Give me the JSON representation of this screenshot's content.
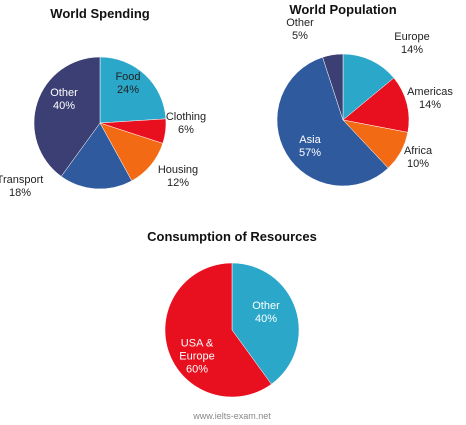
{
  "chart_data": [
    {
      "type": "pie",
      "title": "World Spending",
      "categories": [
        "Food",
        "Clothing",
        "Housing",
        "Transport",
        "Other"
      ],
      "values": [
        24,
        6,
        12,
        18,
        40
      ],
      "value_labels": [
        "24%",
        "6%",
        "12%",
        "18%",
        "40%"
      ],
      "colors": [
        "#2aa7c9",
        "#e8101e",
        "#f36a15",
        "#2f5a9e",
        "#3b3f73"
      ]
    },
    {
      "type": "pie",
      "title": "World Population",
      "categories": [
        "Europe",
        "Americas",
        "Africa",
        "Asia",
        "Other"
      ],
      "values": [
        14,
        14,
        10,
        57,
        5
      ],
      "value_labels": [
        "14%",
        "14%",
        "10%",
        "57%",
        "5%"
      ],
      "colors": [
        "#2aa7c9",
        "#e8101e",
        "#f36a15",
        "#2f5a9e",
        "#3b3f73"
      ]
    },
    {
      "type": "pie",
      "title": "Consumption of Resources",
      "categories": [
        "Other",
        "USA & Europe"
      ],
      "values": [
        40,
        60
      ],
      "value_labels": [
        "40%",
        "60%"
      ],
      "colors": [
        "#2aa7c9",
        "#e8101e"
      ]
    }
  ],
  "watermark": "www.ielts-exam.net"
}
